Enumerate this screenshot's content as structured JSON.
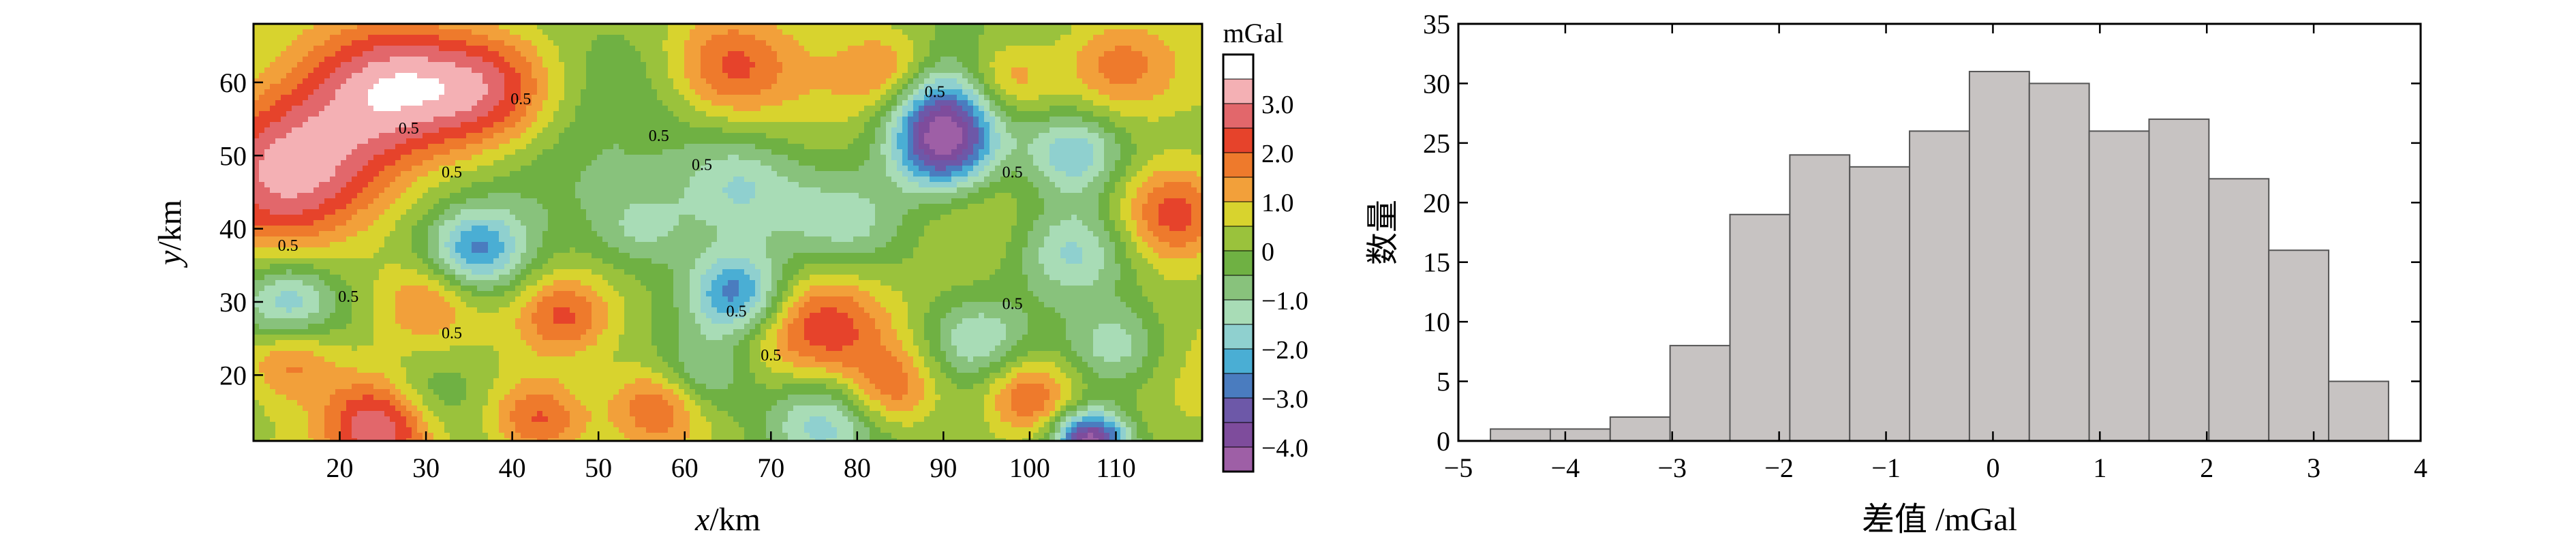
{
  "chart_data": [
    {
      "type": "heatmap",
      "xlabel_var": "x",
      "xlabel_unit": "/km",
      "ylabel_var": "y",
      "ylabel_unit": "/km",
      "xlim": [
        10,
        120
      ],
      "ylim": [
        11,
        68
      ],
      "x_ticks": [
        20,
        30,
        40,
        50,
        60,
        70,
        80,
        90,
        100,
        110
      ],
      "y_ticks": [
        20,
        30,
        40,
        50,
        60
      ],
      "contour_labels": [
        "0.5",
        "0.5",
        "0.5",
        "0.5",
        "0.5",
        "0.5",
        "0.5",
        "0.5",
        "0.5",
        "0.5",
        "0.5",
        "0.5",
        "0.5"
      ],
      "colorbar": {
        "title": "mGal",
        "range": [
          -4.5,
          4.0
        ],
        "tick_values": [
          3.0,
          2.0,
          1.0,
          0,
          -1.0,
          -2.0,
          -3.0,
          -4.0
        ],
        "tick_labels": [
          "3.0",
          "2.0",
          "1.0",
          "0",
          "−1.0",
          "−2.0",
          "−3.0",
          "−4.0"
        ],
        "colors": [
          "#9e5fa6",
          "#7e4c9c",
          "#6d58a8",
          "#4a7cbf",
          "#4aaed4",
          "#8fd0cf",
          "#a8dcb6",
          "#88c27c",
          "#6fb143",
          "#9ac23c",
          "#d8d32e",
          "#f2a03a",
          "#ee7a2c",
          "#e6432b",
          "#e2676b",
          "#f4b0b4",
          "#ffffff"
        ]
      },
      "features": [
        {
          "x": 14,
          "y": 48,
          "v": 3.0,
          "r": 8
        },
        {
          "x": 26,
          "y": 60,
          "v": 2.4,
          "r": 7
        },
        {
          "x": 38,
          "y": 59,
          "v": 2.2,
          "r": 6
        },
        {
          "x": 25,
          "y": 13,
          "v": 3.2,
          "r": 5
        },
        {
          "x": 65,
          "y": 62,
          "v": 1.8,
          "r": 5
        },
        {
          "x": 76,
          "y": 27,
          "v": 2.3,
          "r": 6
        },
        {
          "x": 117,
          "y": 42,
          "v": 2.6,
          "r": 5
        },
        {
          "x": 110,
          "y": 62,
          "v": 1.8,
          "r": 5
        },
        {
          "x": 84,
          "y": 61,
          "v": 1.6,
          "r": 4
        },
        {
          "x": 46,
          "y": 28,
          "v": 1.9,
          "r": 4
        },
        {
          "x": 57,
          "y": 16,
          "v": 2.0,
          "r": 4
        },
        {
          "x": 97,
          "y": 60,
          "v": 2.0,
          "r": 4
        },
        {
          "x": 43,
          "y": 14,
          "v": 2.0,
          "r": 4
        },
        {
          "x": 14,
          "y": 22,
          "v": 1.8,
          "r": 4
        },
        {
          "x": 30,
          "y": 30,
          "v": 1.4,
          "r": 4
        },
        {
          "x": 84,
          "y": 18,
          "v": 1.8,
          "r": 4
        },
        {
          "x": 100,
          "y": 17,
          "v": 2.2,
          "r": 4
        },
        {
          "x": 45,
          "y": 45,
          "v": -0.8,
          "r": 8
        },
        {
          "x": 90,
          "y": 56,
          "v": -3.6,
          "r": 5
        },
        {
          "x": 90,
          "y": 50,
          "v": -2.6,
          "r": 4
        },
        {
          "x": 36,
          "y": 37,
          "v": -2.6,
          "r": 4
        },
        {
          "x": 66,
          "y": 31,
          "v": -3.0,
          "r": 4
        },
        {
          "x": 105,
          "y": 37,
          "v": -2.2,
          "r": 5
        },
        {
          "x": 110,
          "y": 24,
          "v": -1.6,
          "r": 4
        },
        {
          "x": 76,
          "y": 14,
          "v": -2.2,
          "r": 5
        },
        {
          "x": 107,
          "y": 11,
          "v": -4.4,
          "r": 3
        },
        {
          "x": 14,
          "y": 30,
          "v": -2.0,
          "r": 4
        },
        {
          "x": 105,
          "y": 50,
          "v": -2.0,
          "r": 4
        },
        {
          "x": 66,
          "y": 46,
          "v": -1.4,
          "r": 5
        },
        {
          "x": 55,
          "y": 40,
          "v": -1.2,
          "r": 4
        },
        {
          "x": 94,
          "y": 25,
          "v": -1.4,
          "r": 4
        },
        {
          "x": 30,
          "y": 17,
          "v": -1.3,
          "r": 4
        },
        {
          "x": 62,
          "y": 20,
          "v": -1.6,
          "r": 4
        },
        {
          "x": 79,
          "y": 41,
          "v": -1.2,
          "r": 5
        }
      ]
    },
    {
      "type": "bar",
      "xlabel": "差值 /mGal",
      "ylabel": "数量",
      "xlim": [
        -5,
        4
      ],
      "ylim": [
        0,
        35
      ],
      "x_ticks": [
        -5,
        -4,
        -3,
        -2,
        -1,
        0,
        1,
        2,
        3,
        4
      ],
      "x_tick_labels": [
        "−5",
        "−4",
        "−3",
        "−2",
        "−1",
        "0",
        "1",
        "2",
        "3",
        "4"
      ],
      "y_ticks": [
        0,
        5,
        10,
        15,
        20,
        25,
        30,
        35
      ],
      "bin_edges": [
        -4.7,
        -4.14,
        -3.58,
        -3.02,
        -2.46,
        -1.9,
        -1.34,
        -0.78,
        -0.22,
        0.34,
        0.9,
        1.46,
        2.02,
        2.58,
        3.14,
        3.7
      ],
      "values": [
        1,
        1,
        2,
        8,
        19,
        24,
        23,
        26,
        31,
        30,
        26,
        27,
        22,
        16,
        5
      ],
      "bar_color": "#c7c3c2"
    }
  ]
}
